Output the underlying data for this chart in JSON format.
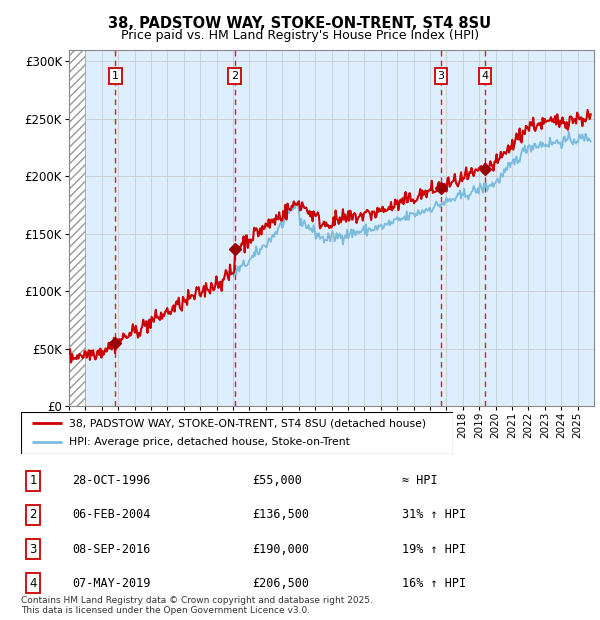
{
  "title1": "38, PADSTOW WAY, STOKE-ON-TRENT, ST4 8SU",
  "title2": "Price paid vs. HM Land Registry's House Price Index (HPI)",
  "ylim": [
    0,
    310000
  ],
  "yticks": [
    0,
    50000,
    100000,
    150000,
    200000,
    250000,
    300000
  ],
  "ytick_labels": [
    "£0",
    "£50K",
    "£100K",
    "£150K",
    "£200K",
    "£250K",
    "£300K"
  ],
  "xlim_start": 1994.0,
  "xlim_end": 2026.0,
  "hpi_color": "#7abcde",
  "price_color": "#cc0000",
  "marker_color": "#990000",
  "purchase_dates": [
    1996.83,
    2004.09,
    2016.68,
    2019.35
  ],
  "purchase_prices": [
    55000,
    136500,
    190000,
    206500
  ],
  "purchase_labels": [
    "1",
    "2",
    "3",
    "4"
  ],
  "legend_label_price": "38, PADSTOW WAY, STOKE-ON-TRENT, ST4 8SU (detached house)",
  "legend_label_hpi": "HPI: Average price, detached house, Stoke-on-Trent",
  "table_rows": [
    [
      "1",
      "28-OCT-1996",
      "£55,000",
      "≈ HPI"
    ],
    [
      "2",
      "06-FEB-2004",
      "£136,500",
      "31% ↑ HPI"
    ],
    [
      "3",
      "08-SEP-2016",
      "£190,000",
      "19% ↑ HPI"
    ],
    [
      "4",
      "07-MAY-2019",
      "£206,500",
      "16% ↑ HPI"
    ]
  ],
  "footer": "Contains HM Land Registry data © Crown copyright and database right 2025.\nThis data is licensed under the Open Government Licence v3.0.",
  "grid_color": "#cccccc",
  "bg_color": "#ddeeff"
}
